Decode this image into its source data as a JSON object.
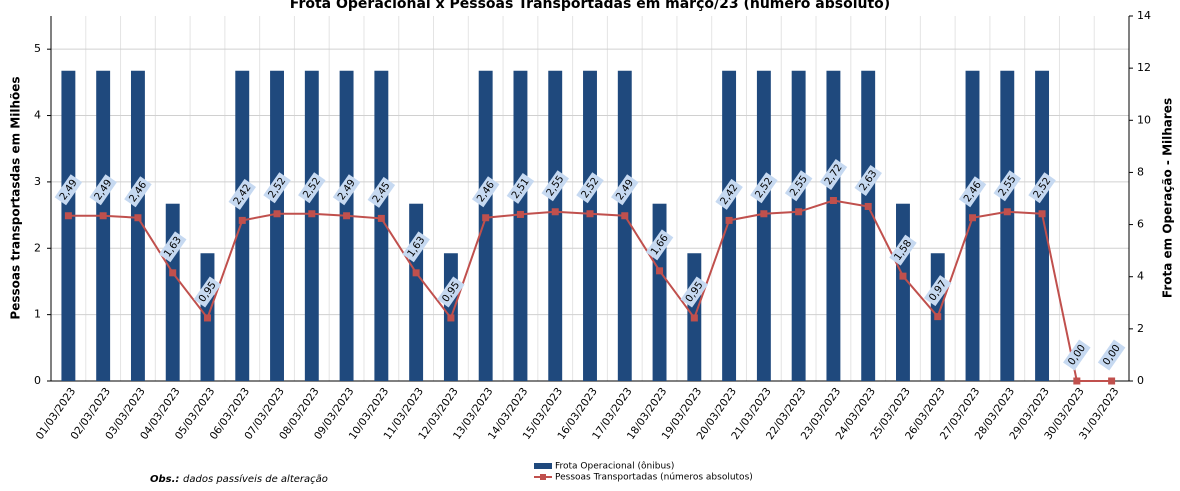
{
  "chart_data": {
    "type": "bar_line",
    "title": "Frota Operacional x Pessoas Transportadas em março/23 (número absoluto)",
    "y_label": "Pessoas transportasdas em Milhões",
    "y2_label": "Frota  em Operação - Milhares",
    "note_label": "Obs.:",
    "note": "dados passíveis de alteração",
    "categories": [
      "01/03/2023",
      "02/03/2023",
      "03/03/2023",
      "04/03/2023",
      "05/03/2023",
      "06/03/2023",
      "07/03/2023",
      "08/03/2023",
      "09/03/2023",
      "10/03/2023",
      "11/03/2023",
      "12/03/2023",
      "13/03/2023",
      "14/03/2023",
      "15/03/2023",
      "16/03/2023",
      "17/03/2023",
      "18/03/2023",
      "19/03/2023",
      "20/03/2023",
      "21/03/2023",
      "22/03/2023",
      "23/03/2023",
      "24/03/2023",
      "25/03/2023",
      "26/03/2023",
      "27/03/2023",
      "28/03/2023",
      "29/03/2023",
      "30/03/2023",
      "31/03/2023"
    ],
    "series": [
      {
        "name": "Frota Operacional (ônibus)",
        "kind": "bar",
        "axis": "y2",
        "color": "#1f497d",
        "values": [
          11.9,
          11.9,
          11.9,
          6.8,
          4.9,
          11.9,
          11.9,
          11.9,
          11.9,
          11.9,
          6.8,
          4.9,
          11.9,
          11.9,
          11.9,
          11.9,
          11.9,
          6.8,
          4.9,
          11.9,
          11.9,
          11.9,
          11.9,
          11.9,
          6.8,
          4.9,
          11.9,
          11.9,
          11.9,
          0,
          0
        ]
      },
      {
        "name": "Pessoas Transportadas (números absolutos)",
        "kind": "line",
        "color": "#c0504d",
        "values": [
          2.49,
          2.49,
          2.46,
          1.63,
          0.95,
          2.42,
          2.52,
          2.52,
          2.49,
          2.45,
          1.63,
          0.95,
          2.46,
          2.51,
          2.55,
          2.52,
          2.49,
          1.66,
          0.95,
          2.42,
          2.52,
          2.55,
          2.72,
          2.63,
          1.58,
          0.97,
          2.46,
          2.55,
          2.52,
          0.0,
          0.0
        ],
        "value_labels": [
          "2,49",
          "2,49",
          "2,46",
          "1,63",
          "0,95",
          "2,42",
          "2,52",
          "2,52",
          "2,49",
          "2,45",
          "1,63",
          "0,95",
          "2,46",
          "2,51",
          "2,55",
          "2,52",
          "2,49",
          "1,66",
          "0,95",
          "2,42",
          "2,52",
          "2,55",
          "2,72",
          "2,63",
          "1,58",
          "0,97",
          "2,46",
          "2,55",
          "2,52",
          "0,00",
          "0,00"
        ]
      }
    ],
    "ylim": [
      0,
      5.5
    ],
    "yticks": [
      0,
      1,
      2,
      3,
      4,
      5
    ],
    "y2lim": [
      0,
      14
    ],
    "y2ticks": [
      0,
      2,
      4,
      6,
      8,
      10,
      12,
      14
    ],
    "grid": true
  }
}
